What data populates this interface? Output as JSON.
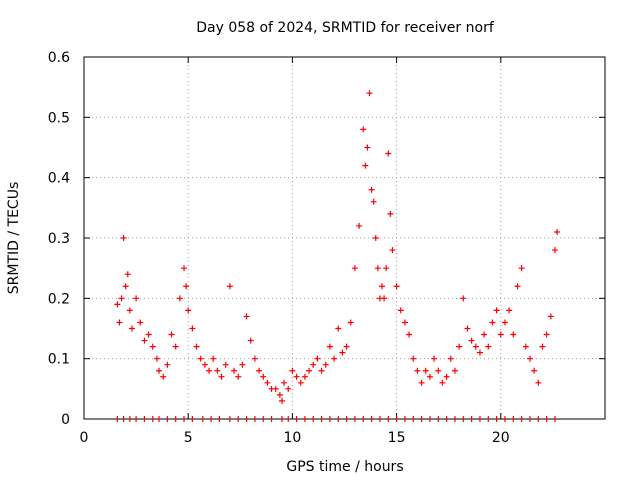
{
  "chart_data": {
    "type": "scatter",
    "title": "Day 058 of 2024, SRMTID for receiver norf",
    "xlabel": "GPS time / hours",
    "ylabel": "SRMTID / TECUs",
    "xlim": [
      0,
      25
    ],
    "ylim": [
      0,
      0.6
    ],
    "x_ticks": [
      0,
      5,
      10,
      15,
      20
    ],
    "x_tick_labels": [
      "0",
      "5",
      "10",
      "15",
      "20"
    ],
    "y_ticks": [
      0,
      0.1,
      0.2,
      0.3,
      0.4,
      0.5,
      0.6
    ],
    "y_tick_labels": [
      "0",
      "0.1",
      "0.2",
      "0.3",
      "0.4",
      "0.5",
      "0.6"
    ],
    "grid": true,
    "marker": "+",
    "series": [
      {
        "name": "SRMTID",
        "color": "#ff0000",
        "x": [
          1.6,
          1.7,
          1.8,
          1.9,
          2.0,
          2.1,
          2.2,
          2.3,
          2.5,
          2.7,
          2.9,
          3.1,
          3.3,
          3.5,
          3.6,
          3.8,
          4.0,
          4.2,
          4.4,
          4.6,
          4.8,
          4.9,
          5.0,
          5.2,
          5.4,
          5.6,
          5.8,
          6.0,
          6.2,
          6.4,
          6.6,
          6.8,
          7.0,
          7.2,
          7.4,
          7.6,
          7.8,
          8.0,
          8.2,
          8.4,
          8.6,
          8.8,
          9.0,
          9.2,
          9.4,
          9.5,
          9.6,
          9.8,
          10.0,
          10.2,
          10.4,
          10.6,
          10.8,
          11.0,
          11.2,
          11.4,
          11.6,
          11.8,
          12.0,
          12.2,
          12.4,
          12.6,
          12.8,
          13.0,
          13.2,
          13.4,
          13.5,
          13.6,
          13.7,
          13.8,
          13.9,
          14.0,
          14.1,
          14.2,
          14.3,
          14.4,
          14.5,
          14.6,
          14.7,
          14.8,
          15.0,
          15.2,
          15.4,
          15.6,
          15.8,
          16.0,
          16.2,
          16.4,
          16.6,
          16.8,
          17.0,
          17.2,
          17.4,
          17.6,
          17.8,
          18.0,
          18.2,
          18.4,
          18.6,
          18.8,
          19.0,
          19.2,
          19.4,
          19.6,
          19.8,
          20.0,
          20.2,
          20.4,
          20.6,
          20.8,
          21.0,
          21.2,
          21.4,
          21.6,
          21.8,
          22.0,
          22.2,
          22.4,
          22.6,
          22.7
        ],
        "y": [
          0.19,
          0.16,
          0.2,
          0.3,
          0.22,
          0.24,
          0.18,
          0.15,
          0.2,
          0.16,
          0.13,
          0.14,
          0.12,
          0.1,
          0.08,
          0.07,
          0.09,
          0.14,
          0.12,
          0.2,
          0.25,
          0.22,
          0.18,
          0.15,
          0.12,
          0.1,
          0.09,
          0.08,
          0.1,
          0.08,
          0.07,
          0.09,
          0.22,
          0.08,
          0.07,
          0.09,
          0.17,
          0.13,
          0.1,
          0.08,
          0.07,
          0.06,
          0.05,
          0.05,
          0.04,
          0.03,
          0.06,
          0.05,
          0.08,
          0.07,
          0.06,
          0.07,
          0.08,
          0.09,
          0.1,
          0.08,
          0.09,
          0.12,
          0.1,
          0.15,
          0.11,
          0.12,
          0.16,
          0.25,
          0.32,
          0.48,
          0.42,
          0.45,
          0.54,
          0.38,
          0.36,
          0.3,
          0.25,
          0.2,
          0.22,
          0.2,
          0.25,
          0.44,
          0.34,
          0.28,
          0.22,
          0.18,
          0.16,
          0.14,
          0.1,
          0.08,
          0.06,
          0.08,
          0.07,
          0.1,
          0.08,
          0.06,
          0.07,
          0.1,
          0.08,
          0.12,
          0.2,
          0.15,
          0.13,
          0.12,
          0.11,
          0.14,
          0.12,
          0.16,
          0.18,
          0.14,
          0.16,
          0.18,
          0.14,
          0.22,
          0.25,
          0.12,
          0.1,
          0.08,
          0.06,
          0.12,
          0.14,
          0.17,
          0.28,
          0.31
        ]
      }
    ],
    "baseline_markers_x": [
      1.6,
      1.9,
      2.2,
      2.5,
      2.9,
      3.3,
      3.6,
      4.0,
      4.4,
      4.8,
      5.2,
      5.7,
      6.1,
      6.5,
      7.0,
      7.4,
      7.8,
      8.2,
      8.6,
      9.0,
      9.5,
      9.8,
      10.2,
      10.6,
      11.0,
      11.4,
      11.8,
      12.2,
      12.6,
      13.0,
      13.4,
      13.8,
      14.2,
      14.6,
      15.0,
      15.4,
      15.8,
      16.2,
      16.6,
      17.0,
      17.4,
      17.8,
      18.2,
      18.6,
      19.0,
      19.4,
      19.8,
      20.2,
      20.6,
      21.0,
      21.4,
      21.8,
      22.2,
      22.6
    ]
  }
}
